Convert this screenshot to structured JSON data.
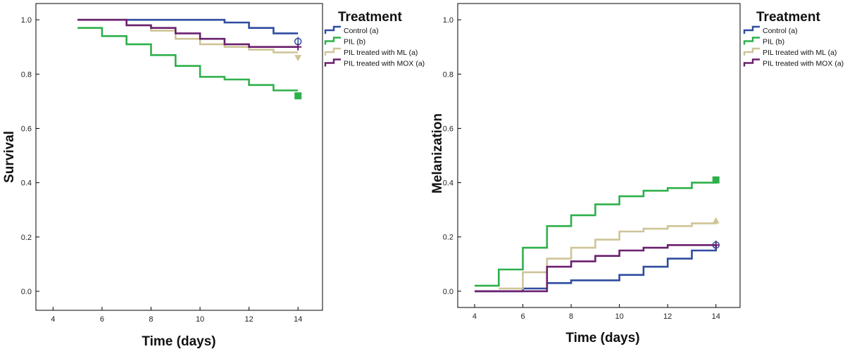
{
  "chart_data": [
    {
      "type": "line",
      "step": true,
      "title": "",
      "xlabel": "Time (days)",
      "ylabel": "Survival",
      "xlim": [
        3.3,
        15.0
      ],
      "ylim": [
        -0.07,
        1.06
      ],
      "xticks": [
        4,
        6,
        8,
        10,
        12,
        14
      ],
      "xtick_labels": [
        "4",
        "6",
        "8",
        "10",
        "12",
        "14"
      ],
      "yticks": [
        0.0,
        0.2,
        0.4,
        0.6,
        0.8,
        1.0
      ],
      "ytick_labels": [
        "0.0",
        "0.2",
        "0.4",
        "0.6",
        "0.8",
        "1.0"
      ],
      "legend_title": "Treatment",
      "legend_position": "right",
      "series": [
        {
          "name": "Control (a)",
          "color": "#2e4ca0",
          "marker": "circle",
          "x": [
            5,
            7,
            8,
            9,
            10,
            11,
            12,
            13,
            14
          ],
          "y": [
            1.0,
            1.0,
            1.0,
            1.0,
            1.0,
            0.99,
            0.97,
            0.95,
            0.95
          ],
          "end": {
            "x": 14,
            "y": 0.92
          }
        },
        {
          "name": "PIL (b)",
          "color": "#2eb04a",
          "marker": "square",
          "x": [
            5,
            6,
            7,
            8,
            9,
            10,
            11,
            12,
            13,
            14
          ],
          "y": [
            0.97,
            0.94,
            0.91,
            0.87,
            0.83,
            0.79,
            0.78,
            0.76,
            0.74,
            0.74
          ],
          "end": {
            "x": 14,
            "y": 0.72
          }
        },
        {
          "name": "PIL treated with ML (a)",
          "color": "#cfc497",
          "marker": "triangle-down",
          "x": [
            5,
            7,
            8,
            9,
            10,
            11,
            12,
            13,
            14
          ],
          "y": [
            1.0,
            0.98,
            0.96,
            0.93,
            0.91,
            0.9,
            0.89,
            0.88,
            0.88
          ],
          "end": {
            "x": 14,
            "y": 0.86
          }
        },
        {
          "name": "PIL treated with MOX (a)",
          "color": "#6b1f6e",
          "marker": "plus",
          "x": [
            5,
            7,
            8,
            9,
            10,
            11,
            12,
            13,
            14
          ],
          "y": [
            1.0,
            0.98,
            0.97,
            0.95,
            0.93,
            0.91,
            0.9,
            0.9,
            0.9
          ],
          "end": {
            "x": 14,
            "y": 0.9
          }
        }
      ]
    },
    {
      "type": "line",
      "step": true,
      "title": "",
      "xlabel": "Time (days)",
      "ylabel": "Melanization",
      "xlim": [
        3.3,
        15.0
      ],
      "ylim": [
        -0.06,
        1.06
      ],
      "xticks": [
        4,
        6,
        8,
        10,
        12,
        14
      ],
      "xtick_labels": [
        "4",
        "6",
        "8",
        "10",
        "12",
        "14"
      ],
      "yticks": [
        0.0,
        0.2,
        0.4,
        0.6,
        0.8,
        1.0
      ],
      "ytick_labels": [
        "0.0",
        "0.2",
        "0.4",
        "0.6",
        "0.8",
        "1.0"
      ],
      "legend_title": "Treatment",
      "legend_position": "right",
      "series": [
        {
          "name": "Control (a)",
          "color": "#2e4ca0",
          "marker": "circle",
          "x": [
            4,
            5,
            6,
            7,
            8,
            9,
            10,
            11,
            12,
            13,
            14
          ],
          "y": [
            0.0,
            0.0,
            0.01,
            0.03,
            0.04,
            0.04,
            0.06,
            0.09,
            0.12,
            0.15,
            0.17
          ],
          "end": {
            "x": 14,
            "y": 0.17
          }
        },
        {
          "name": "PIL (b)",
          "color": "#2eb04a",
          "marker": "square",
          "x": [
            4,
            5,
            6,
            7,
            8,
            9,
            10,
            11,
            12,
            13,
            14
          ],
          "y": [
            0.02,
            0.08,
            0.16,
            0.24,
            0.28,
            0.32,
            0.35,
            0.37,
            0.38,
            0.4,
            0.41
          ],
          "end": {
            "x": 14,
            "y": 0.41
          }
        },
        {
          "name": "PIL treated with ML (a)",
          "color": "#cfc497",
          "marker": "triangle-up",
          "x": [
            5,
            6,
            7,
            8,
            9,
            10,
            11,
            12,
            13,
            14
          ],
          "y": [
            0.01,
            0.07,
            0.12,
            0.16,
            0.19,
            0.22,
            0.23,
            0.24,
            0.25,
            0.26
          ],
          "end": {
            "x": 14,
            "y": 0.26
          }
        },
        {
          "name": "PIL treated with MOX (a)",
          "color": "#6b1f6e",
          "marker": "plus",
          "x": [
            4,
            5,
            6,
            7,
            8,
            9,
            10,
            11,
            12,
            13,
            14
          ],
          "y": [
            0.0,
            0.0,
            0.0,
            0.09,
            0.11,
            0.13,
            0.15,
            0.16,
            0.17,
            0.17,
            0.17
          ],
          "end": {
            "x": 14,
            "y": 0.17
          }
        }
      ]
    }
  ]
}
